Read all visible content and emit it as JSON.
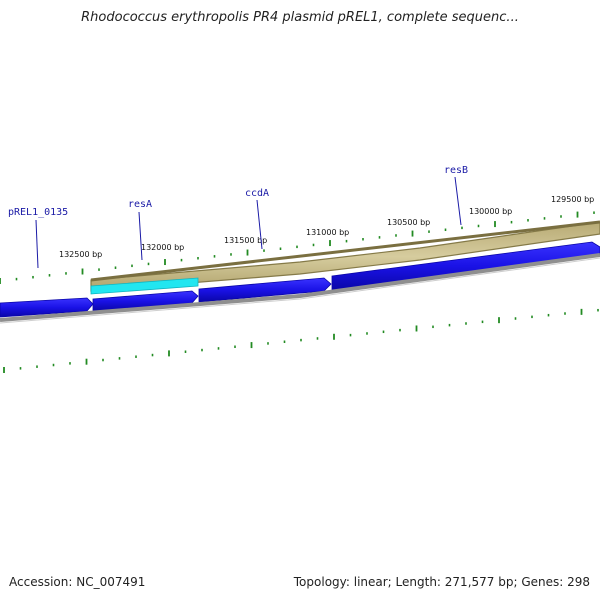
{
  "title": "Rhodococcus erythropolis PR4 plasmid pREL1, complete sequenc...",
  "footer": {
    "accession": "Accession: NC_007491",
    "summary": "Topology: linear; Length: 271,577 bp; Genes: 298"
  },
  "colors": {
    "gene_arrow": "#1a12e6",
    "gene_highlight": "#22e6f0",
    "feature_band": "#cfc28e",
    "feature_edge": "#857a48",
    "ticks": "#228b22",
    "backbone": "#8f8f8f"
  },
  "scale": {
    "labels": [
      "132500 bp",
      "132000 bp",
      "131500 bp",
      "131000 bp",
      "130500 bp",
      "130000 bp",
      "129500 bp"
    ]
  },
  "genes": [
    {
      "name": "pREL1_0135"
    },
    {
      "name": "resA"
    },
    {
      "name": "ccdA"
    },
    {
      "name": "resB"
    }
  ]
}
